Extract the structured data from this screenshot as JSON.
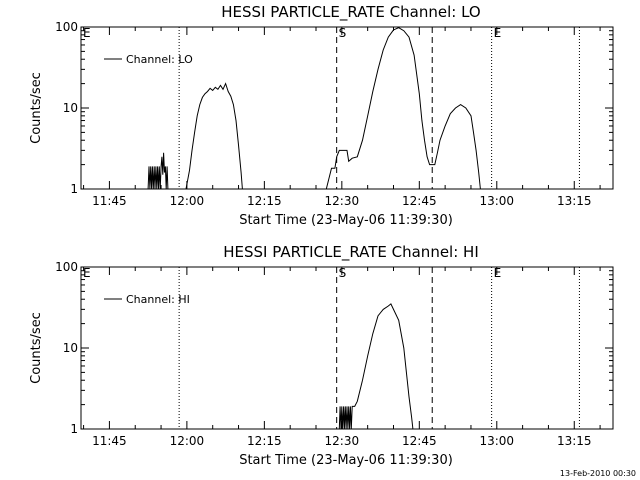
{
  "footer": {
    "date_stamp": "13-Feb-2010 00:30"
  },
  "chart_data": [
    {
      "type": "line",
      "title": "HESSI PARTICLE_RATE Channel: LO",
      "xlabel": "Start Time (23-May-06 11:39:30)",
      "ylabel": "Counts/sec",
      "y_scale": "log",
      "ylim": [
        1,
        100
      ],
      "xlim": [
        "11:39:30",
        "13:22:30"
      ],
      "x_ticks": [
        "11:45",
        "12:00",
        "12:15",
        "12:30",
        "12:45",
        "13:00",
        "13:15"
      ],
      "y_ticks": [
        "1",
        "10",
        "100"
      ],
      "legend": {
        "entries": [
          "Channel: LO"
        ],
        "placement": "top-left"
      },
      "markers": [
        {
          "label": "E",
          "time": "11:39:30",
          "style": "dotted"
        },
        {
          "label": "",
          "time": "11:58:30",
          "style": "dotted"
        },
        {
          "label": "S",
          "time": "12:29:00",
          "style": "dashed"
        },
        {
          "label": "",
          "time": "12:47:30",
          "style": "dashed"
        },
        {
          "label": "E",
          "time": "12:59:00",
          "style": "dotted"
        },
        {
          "label": "",
          "time": "13:16:00",
          "style": "dotted"
        }
      ],
      "series": [
        {
          "name": "Channel: LO",
          "points": [
            [
              "11:52:30",
              1
            ],
            [
              "11:52:40",
              1.9
            ],
            [
              "11:52:50",
              1
            ],
            [
              "11:53:00",
              1.9
            ],
            [
              "11:53:10",
              1
            ],
            [
              "11:53:20",
              1.9
            ],
            [
              "11:53:30",
              1
            ],
            [
              "11:53:40",
              1.9
            ],
            [
              "11:53:50",
              1
            ],
            [
              "11:54:00",
              1.9
            ],
            [
              "11:54:10",
              1
            ],
            [
              "11:54:20",
              1.9
            ],
            [
              "11:54:30",
              1
            ],
            [
              "11:54:40",
              1.9
            ],
            [
              "11:54:50",
              1
            ],
            [
              "11:55:00",
              1.9
            ],
            [
              "11:55:10",
              2.5
            ],
            [
              "11:55:20",
              1.5
            ],
            [
              "11:55:30",
              2.8
            ],
            [
              "11:55:40",
              1.6
            ],
            [
              "11:55:50",
              1.9
            ],
            [
              "11:56:00",
              1
            ],
            [
              "11:56:10",
              1.9
            ],
            [
              "11:56:20",
              1
            ],
            [
              "11:59:50",
              1
            ],
            [
              "12:00:30",
              1.7
            ],
            [
              "12:01:00",
              3
            ],
            [
              "12:01:30",
              5
            ],
            [
              "12:02:00",
              8
            ],
            [
              "12:02:30",
              11
            ],
            [
              "12:03:00",
              13.5
            ],
            [
              "12:03:30",
              15
            ],
            [
              "12:04:00",
              16
            ],
            [
              "12:04:30",
              17.5
            ],
            [
              "12:05:00",
              16.5
            ],
            [
              "12:05:30",
              18
            ],
            [
              "12:06:00",
              17
            ],
            [
              "12:06:30",
              19
            ],
            [
              "12:07:00",
              17
            ],
            [
              "12:07:30",
              20
            ],
            [
              "12:08:00",
              16
            ],
            [
              "12:08:30",
              14
            ],
            [
              "12:09:00",
              11
            ],
            [
              "12:09:30",
              7
            ],
            [
              "12:10:00",
              3.5
            ],
            [
              "12:10:30",
              1.6
            ],
            [
              "12:10:45",
              1
            ],
            [
              "12:27:00",
              1
            ],
            [
              "12:28:00",
              1.8
            ],
            [
              "12:28:40",
              1.8
            ],
            [
              "12:29:00",
              2.5
            ],
            [
              "12:29:30",
              3
            ],
            [
              "12:31:00",
              3
            ],
            [
              "12:31:20",
              2.2
            ],
            [
              "12:32:00",
              2.4
            ],
            [
              "12:33:00",
              2.5
            ],
            [
              "12:34:00",
              4
            ],
            [
              "12:35:00",
              8
            ],
            [
              "12:36:00",
              16
            ],
            [
              "12:37:00",
              30
            ],
            [
              "12:38:00",
              52
            ],
            [
              "12:39:00",
              75
            ],
            [
              "12:40:00",
              92
            ],
            [
              "12:41:00",
              98
            ],
            [
              "12:42:00",
              90
            ],
            [
              "12:43:00",
              75
            ],
            [
              "12:44:00",
              45
            ],
            [
              "12:45:00",
              15
            ],
            [
              "12:45:30",
              7
            ],
            [
              "12:46:00",
              4
            ],
            [
              "12:46:30",
              2.5
            ],
            [
              "12:47:00",
              2
            ],
            [
              "12:48:00",
              2
            ],
            [
              "12:48:30",
              2.8
            ],
            [
              "12:49:00",
              4
            ],
            [
              "12:50:00",
              6
            ],
            [
              "12:51:00",
              8.5
            ],
            [
              "12:52:00",
              10
            ],
            [
              "12:53:00",
              11
            ],
            [
              "12:54:00",
              10
            ],
            [
              "12:55:00",
              8
            ],
            [
              "12:55:30",
              5
            ],
            [
              "12:56:00",
              3
            ],
            [
              "12:56:30",
              1.6
            ],
            [
              "12:56:50",
              1
            ]
          ]
        }
      ]
    },
    {
      "type": "line",
      "title": "HESSI PARTICLE_RATE Channel: HI",
      "xlabel": "Start Time (23-May-06 11:39:30)",
      "ylabel": "Counts/sec",
      "y_scale": "log",
      "ylim": [
        1,
        100
      ],
      "xlim": [
        "11:39:30",
        "13:22:30"
      ],
      "x_ticks": [
        "11:45",
        "12:00",
        "12:15",
        "12:30",
        "12:45",
        "13:00",
        "13:15"
      ],
      "y_ticks": [
        "1",
        "10",
        "100"
      ],
      "legend": {
        "entries": [
          "Channel: HI"
        ],
        "placement": "top-left"
      },
      "markers": [
        {
          "label": "E",
          "time": "11:39:30",
          "style": "dotted"
        },
        {
          "label": "",
          "time": "11:58:30",
          "style": "dotted"
        },
        {
          "label": "S",
          "time": "12:29:00",
          "style": "dashed"
        },
        {
          "label": "",
          "time": "12:47:30",
          "style": "dashed"
        },
        {
          "label": "E",
          "time": "12:59:00",
          "style": "dotted"
        },
        {
          "label": "",
          "time": "13:16:00",
          "style": "dotted"
        }
      ],
      "series": [
        {
          "name": "Channel: HI",
          "points": [
            [
              "12:29:30",
              1
            ],
            [
              "12:29:40",
              1.9
            ],
            [
              "12:29:50",
              1
            ],
            [
              "12:30:00",
              1.9
            ],
            [
              "12:30:10",
              1
            ],
            [
              "12:30:20",
              1.9
            ],
            [
              "12:30:30",
              1
            ],
            [
              "12:30:40",
              1.9
            ],
            [
              "12:30:50",
              1
            ],
            [
              "12:31:00",
              1.9
            ],
            [
              "12:31:10",
              1
            ],
            [
              "12:31:20",
              1.9
            ],
            [
              "12:31:30",
              1
            ],
            [
              "12:31:40",
              1.9
            ],
            [
              "12:31:50",
              1
            ],
            [
              "12:32:00",
              1.9
            ],
            [
              "12:32:30",
              1.9
            ],
            [
              "12:33:00",
              2.2
            ],
            [
              "12:34:00",
              4
            ],
            [
              "12:35:00",
              8
            ],
            [
              "12:36:00",
              15
            ],
            [
              "12:37:00",
              25
            ],
            [
              "12:38:00",
              30
            ],
            [
              "12:39:00",
              33
            ],
            [
              "12:39:30",
              35
            ],
            [
              "12:40:00",
              30
            ],
            [
              "12:41:00",
              22
            ],
            [
              "12:42:00",
              10
            ],
            [
              "12:42:30",
              5
            ],
            [
              "12:43:00",
              2.5
            ],
            [
              "12:43:30",
              1.4
            ],
            [
              "12:43:45",
              1
            ]
          ]
        }
      ]
    }
  ]
}
